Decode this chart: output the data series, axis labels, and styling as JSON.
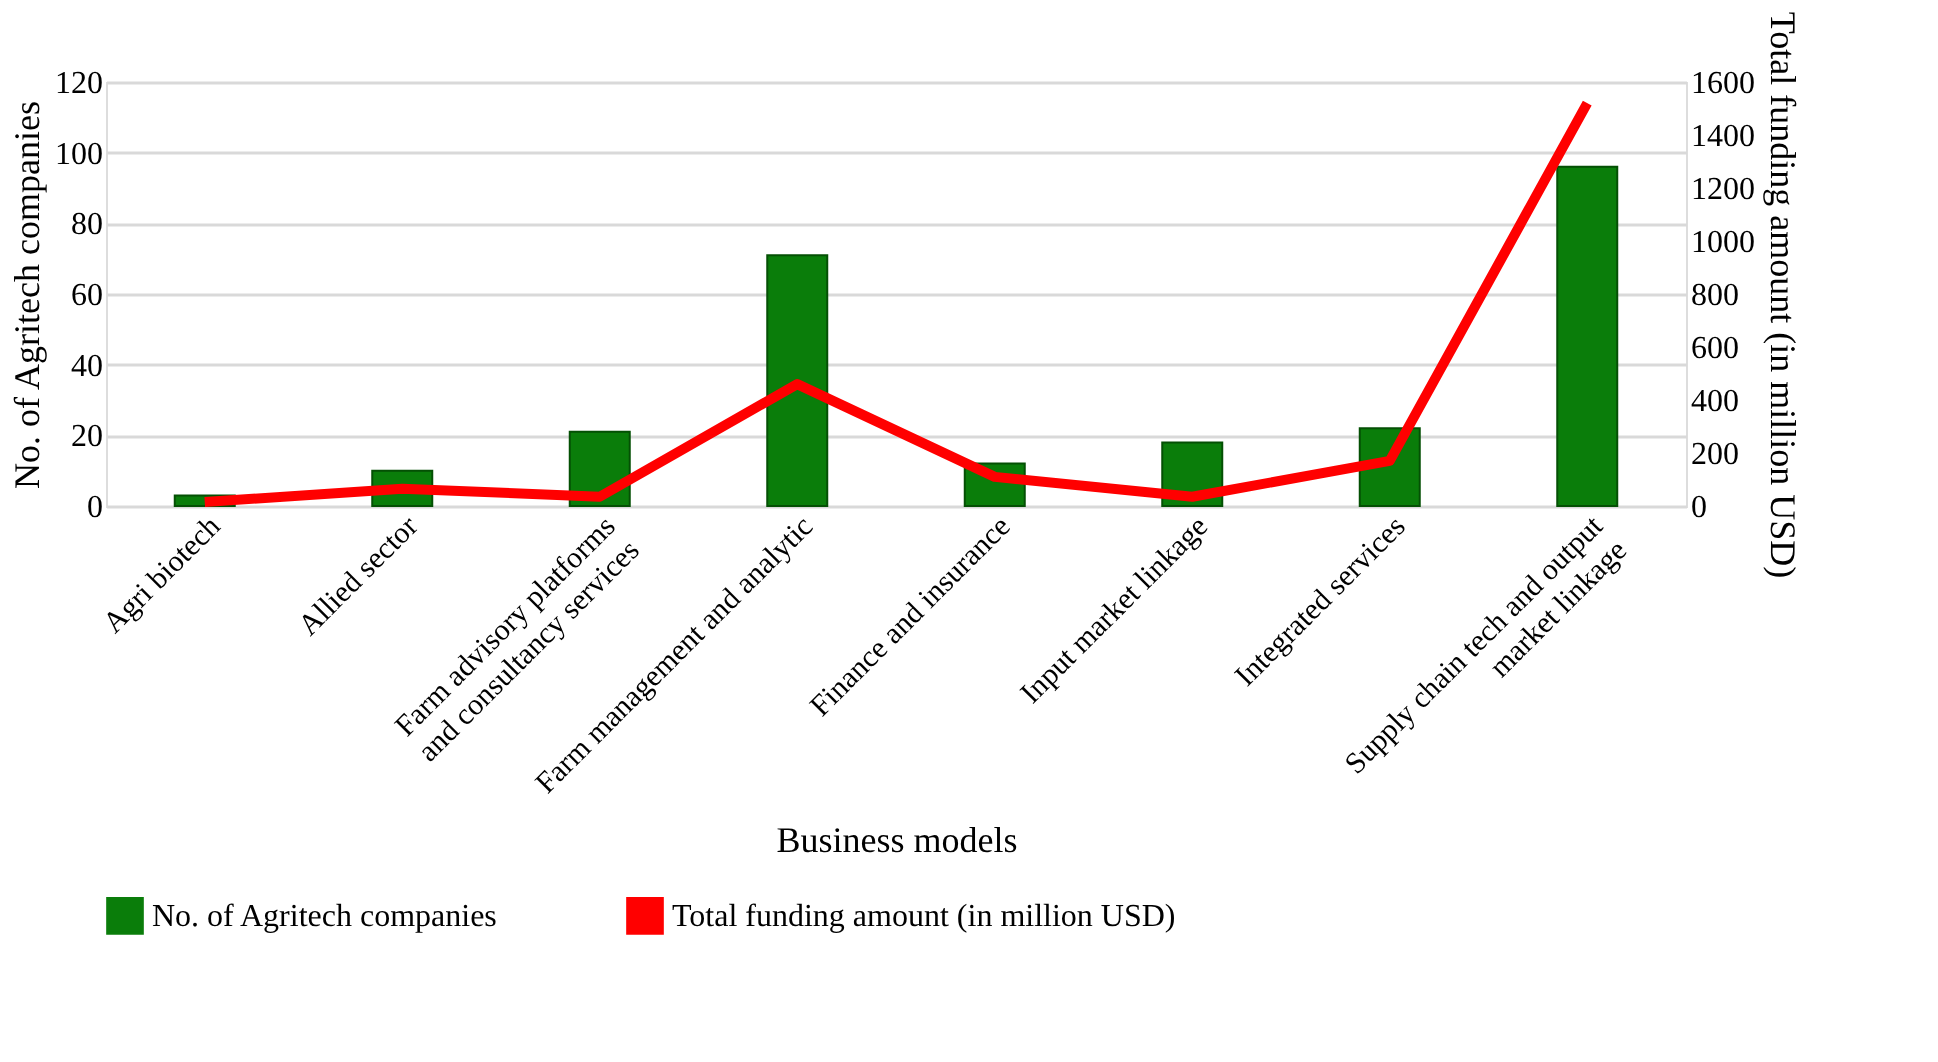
{
  "chart_data": {
    "type": "bar",
    "xlabel": "Business models",
    "ylabel": "No. of Agritech companies",
    "y2label": "Total funding amount (in million USD)",
    "categories": [
      "Agri biotech",
      "Allied sector",
      "Farm advisory platforms\nand consultancy services",
      "Farm management and analytic",
      "Finance and insurance",
      "Input market linkage",
      "Integrated services",
      "Supply chain tech and output\nmarket linkage"
    ],
    "series": [
      {
        "name": "No. of Agritech companies",
        "color": "#0a7d0a",
        "values": [
          3,
          10,
          21,
          71,
          12,
          18,
          22,
          96
        ]
      },
      {
        "name": "Total funding amount (in million USD)",
        "type": "line",
        "axis": "y2",
        "color": "#ff0000",
        "values": [
          15,
          65,
          35,
          460,
          110,
          35,
          170,
          1520
        ]
      }
    ],
    "ylim": [
      0,
      120
    ],
    "yticks": [
      0,
      20,
      40,
      60,
      80,
      100,
      120
    ],
    "y2lim": [
      0,
      1600
    ],
    "y2ticks": [
      0,
      200,
      400,
      600,
      800,
      1000,
      1200,
      1400,
      1600
    ],
    "grid": "y",
    "legend": "bottom"
  }
}
